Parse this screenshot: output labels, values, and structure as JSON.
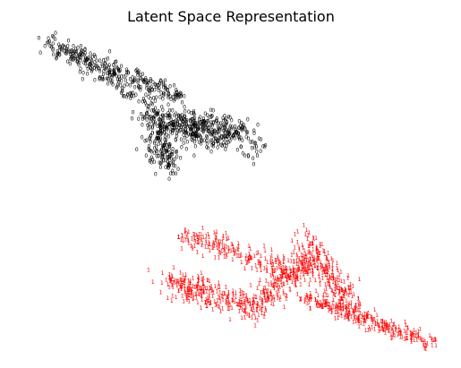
{
  "chart_data": {
    "type": "scatter",
    "title": "Latent Space Representation",
    "xlabel": "",
    "ylabel": "",
    "axes_visible": false,
    "grid": false,
    "legend": "none",
    "marker": "digit text glyph (class label)",
    "xlim": [
      -3.2,
      3.0
    ],
    "ylim": [
      -3.0,
      2.7
    ],
    "series": [
      {
        "label": "0",
        "color": "#000000",
        "clusters": [
          {
            "from": [
              -2.8,
              2.5
            ],
            "to": [
              -0.8,
              1.5
            ],
            "count": 260,
            "spread": 0.08
          },
          {
            "from": [
              -2.6,
              2.4
            ],
            "to": [
              -1.2,
              1.3
            ],
            "count": 110,
            "spread": 0.07
          },
          {
            "from": [
              -1.3,
              1.1
            ],
            "to": [
              0.0,
              0.9
            ],
            "count": 420,
            "spread": 0.14
          },
          {
            "from": [
              -1.2,
              0.8
            ],
            "to": [
              -1.0,
              0.3
            ],
            "count": 120,
            "spread": 0.1
          },
          {
            "from": [
              -1.1,
              0.9
            ],
            "to": [
              0.4,
              0.6
            ],
            "count": 60,
            "spread": 0.12
          }
        ]
      },
      {
        "label": "1",
        "color": "#ff0000",
        "clusters": [
          {
            "from": [
              -0.8,
              -0.9
            ],
            "to": [
              1.0,
              -1.6
            ],
            "count": 230,
            "spread": 0.1
          },
          {
            "from": [
              -1.0,
              -1.7
            ],
            "to": [
              0.3,
              -2.2
            ],
            "count": 280,
            "spread": 0.12
          },
          {
            "from": [
              0.3,
              -2.1
            ],
            "to": [
              1.1,
              -1.3
            ],
            "count": 200,
            "spread": 0.12
          },
          {
            "from": [
              1.0,
              -1.0
            ],
            "to": [
              1.7,
              -2.2
            ],
            "count": 230,
            "spread": 0.11
          },
          {
            "from": [
              1.0,
              -2.0
            ],
            "to": [
              2.9,
              -2.8
            ],
            "count": 280,
            "spread": 0.07
          }
        ]
      }
    ]
  }
}
